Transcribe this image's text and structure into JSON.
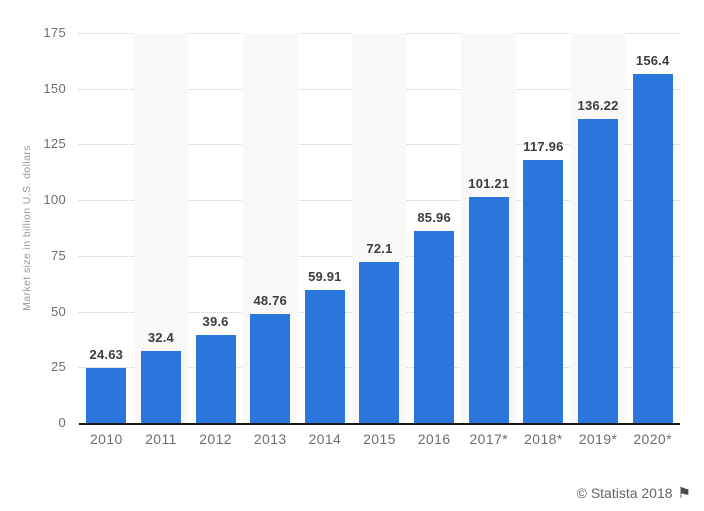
{
  "chart_data": {
    "type": "bar",
    "title": "",
    "xlabel": "",
    "ylabel": "Market size in billion U.S. dollars",
    "ylim": [
      0,
      175
    ],
    "ytick_step": 25,
    "yticks": [
      175,
      150,
      125,
      100,
      75,
      50,
      25,
      0
    ],
    "grid": "horizontal-dotted",
    "legend_position": "none",
    "categories": [
      "2010",
      "2011",
      "2012",
      "2013",
      "2014",
      "2015",
      "2016",
      "2017*",
      "2018*",
      "2019*",
      "2020*"
    ],
    "values": [
      24.63,
      32.4,
      39.6,
      48.76,
      59.91,
      72.1,
      85.96,
      101.21,
      117.96,
      136.22,
      156.4
    ],
    "value_labels": [
      "24.63",
      "32.4",
      "39.6",
      "48.76",
      "59.91",
      "72.1",
      "85.96",
      "101.21",
      "117.96",
      "136.22",
      "156.4"
    ],
    "colors": {
      "bar": "#2a76dd",
      "column_stripe": "#f8f8f8",
      "gridline": "#cccccc",
      "axis_line": "#171717",
      "value_label": "#3d3d3d",
      "tick_label": "#6e6e6e",
      "axis_title": "#989898"
    }
  },
  "footer": {
    "copyright": "© Statista 2018",
    "flag_icon_glyph": "⚑"
  }
}
